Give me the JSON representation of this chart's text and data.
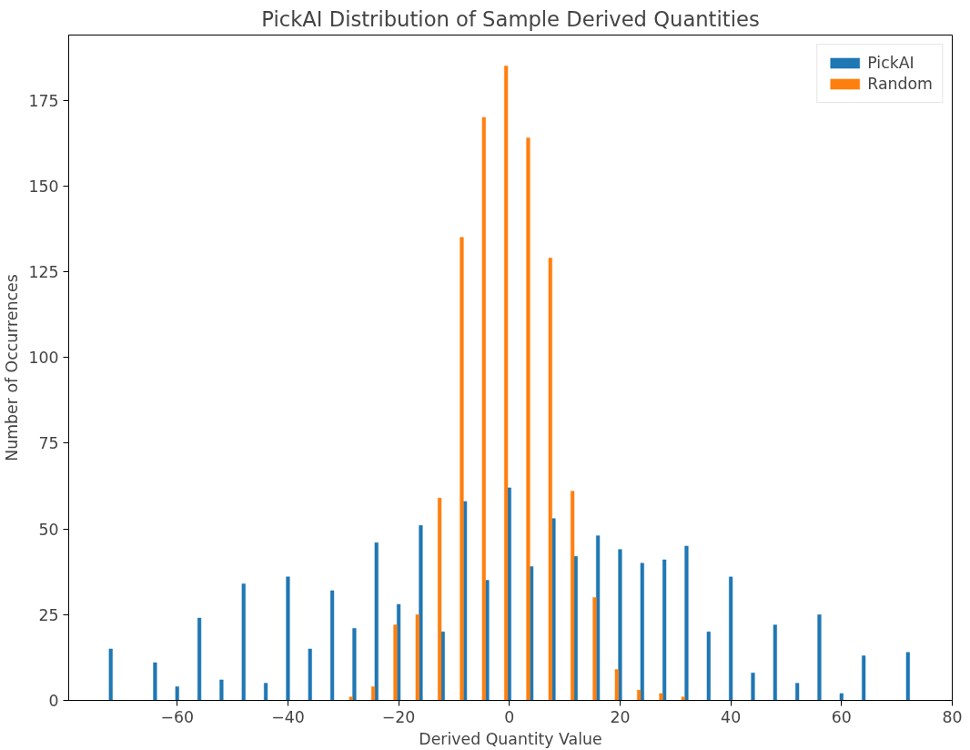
{
  "chart_data": {
    "type": "bar",
    "title": "PickAI Distribution of Sample Derived Quantities",
    "xlabel": "Derived Quantity Value",
    "ylabel": "Number of Occurrences",
    "xlim": [
      -79.6,
      80
    ],
    "xticks": [
      -60,
      -40,
      -20,
      0,
      20,
      40,
      60,
      80
    ],
    "ylim": [
      0,
      194
    ],
    "yticks": [
      0,
      25,
      50,
      75,
      100,
      125,
      150,
      175
    ],
    "grid": false,
    "legend": "top right",
    "series": [
      {
        "name": "PickAI",
        "color": "#1f77b4",
        "x": [
          -72,
          -68,
          -64,
          -60,
          -56,
          -52,
          -48,
          -44,
          -40,
          -36,
          -32,
          -28,
          -24,
          -20,
          -16,
          -12,
          -8,
          -4,
          0,
          4,
          8,
          12,
          16,
          20,
          24,
          28,
          32,
          36,
          40,
          44,
          48,
          52,
          56,
          60,
          64,
          68,
          72
        ],
        "values": [
          15,
          0,
          11,
          4,
          24,
          6,
          34,
          5,
          36,
          15,
          32,
          21,
          46,
          28,
          51,
          20,
          58,
          35,
          62,
          39,
          53,
          42,
          48,
          44,
          40,
          41,
          45,
          20,
          36,
          8,
          22,
          5,
          25,
          2,
          13,
          0,
          14
        ]
      },
      {
        "name": "Random",
        "color": "#ff7f0e",
        "x": [
          -28.6,
          -24.6,
          -20.6,
          -16.6,
          -12.6,
          -8.6,
          -4.6,
          -0.6,
          3.4,
          7.4,
          11.4,
          15.4,
          19.4,
          23.4,
          27.4,
          31.4
        ],
        "values": [
          1,
          4,
          22,
          25,
          59,
          135,
          170,
          185,
          164,
          129,
          61,
          30,
          9,
          3,
          2,
          1
        ]
      }
    ]
  }
}
